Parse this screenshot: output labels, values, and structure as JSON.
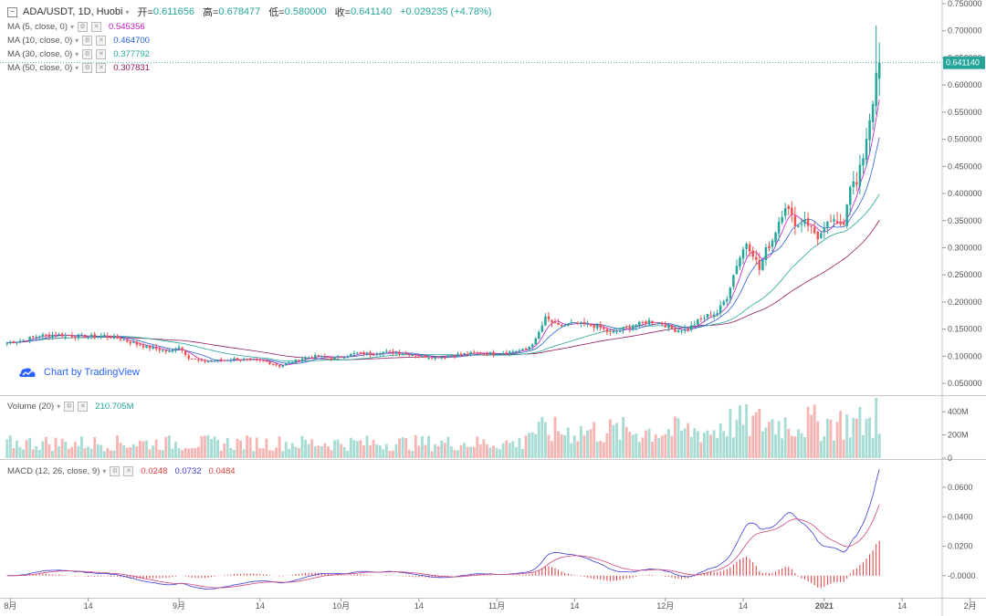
{
  "header": {
    "symbol": "ADA/USDT, 1D, Huobi",
    "open_label": "开=",
    "open": "0.611656",
    "high_label": "高=",
    "high": "0.678477",
    "low_label": "低=",
    "low": "0.580000",
    "close_label": "收=",
    "close": "0.641140",
    "change": "+0.029235 (+4.78%)"
  },
  "indicators": {
    "ma5": {
      "label": "MA (5, close, 0)",
      "value": "0.545356",
      "color": "#c218c2"
    },
    "ma10": {
      "label": "MA (10, close, 0)",
      "value": "0.464700",
      "color": "#2a5fd0"
    },
    "ma30": {
      "label": "MA (30, close, 0)",
      "value": "0.377792",
      "color": "#26a69a"
    },
    "ma50": {
      "label": "MA (50, close, 0)",
      "value": "0.307831",
      "color": "#8e1a5c"
    },
    "volume": {
      "label": "Volume (20)",
      "value": "210.705M"
    },
    "macd": {
      "label": "MACD (12, 26, close, 9)",
      "hist": "0.0248",
      "macd": "0.0732",
      "signal": "0.0484"
    }
  },
  "branding": "Chart by TradingView",
  "price_badge": "0.641140",
  "colors": {
    "up": "#26a69a",
    "down": "#ef5350",
    "up_vol": "#a6dcd3",
    "down_vol": "#f5b5b3",
    "macd_line": "#3b3bd6",
    "signal_line": "#d0467e",
    "hist": "#e03b3b"
  },
  "chart_data": {
    "type": "candlestick",
    "symbol": "ADA/USDT",
    "interval": "1D",
    "price_axis": {
      "ticks": [
        "0.750000",
        "0.700000",
        "0.650000",
        "0.600000",
        "0.550000",
        "0.500000",
        "0.450000",
        "0.400000",
        "0.350000",
        "0.300000",
        "0.250000",
        "0.200000",
        "0.150000",
        "0.100000",
        "0.050000"
      ],
      "range": [
        0.03,
        0.75
      ]
    },
    "volume_axis": {
      "ticks": [
        "400M",
        "200M",
        "0"
      ],
      "range": [
        0,
        520
      ]
    },
    "macd_axis": {
      "ticks": [
        "0.0600",
        "0.0400",
        "0.0200",
        "-0.0000"
      ],
      "range": [
        -0.015,
        0.078
      ]
    },
    "x_labels": [
      "8月",
      "14",
      "9月",
      "14",
      "10月",
      "14",
      "11月",
      "14",
      "12月",
      "14",
      "2021",
      "14",
      "2月",
      "14"
    ],
    "waypoints": [
      [
        0,
        0.125
      ],
      [
        5,
        0.13
      ],
      [
        10,
        0.138
      ],
      [
        15,
        0.14
      ],
      [
        20,
        0.138
      ],
      [
        25,
        0.136
      ],
      [
        30,
        0.138
      ],
      [
        35,
        0.132
      ],
      [
        40,
        0.122
      ],
      [
        45,
        0.115
      ],
      [
        50,
        0.108
      ],
      [
        53,
        0.118
      ],
      [
        56,
        0.098
      ],
      [
        60,
        0.09
      ],
      [
        65,
        0.092
      ],
      [
        70,
        0.095
      ],
      [
        75,
        0.093
      ],
      [
        80,
        0.09
      ],
      [
        84,
        0.082
      ],
      [
        88,
        0.09
      ],
      [
        92,
        0.098
      ],
      [
        96,
        0.1
      ],
      [
        100,
        0.097
      ],
      [
        104,
        0.1
      ],
      [
        108,
        0.106
      ],
      [
        112,
        0.104
      ],
      [
        116,
        0.108
      ],
      [
        120,
        0.107
      ],
      [
        124,
        0.104
      ],
      [
        128,
        0.1
      ],
      [
        132,
        0.098
      ],
      [
        136,
        0.1
      ],
      [
        140,
        0.104
      ],
      [
        145,
        0.106
      ],
      [
        150,
        0.105
      ],
      [
        155,
        0.108
      ],
      [
        160,
        0.112
      ],
      [
        163,
        0.13
      ],
      [
        166,
        0.17
      ],
      [
        170,
        0.155
      ],
      [
        174,
        0.16
      ],
      [
        178,
        0.158
      ],
      [
        182,
        0.155
      ],
      [
        186,
        0.143
      ],
      [
        190,
        0.15
      ],
      [
        194,
        0.158
      ],
      [
        198,
        0.165
      ],
      [
        202,
        0.16
      ],
      [
        206,
        0.148
      ],
      [
        210,
        0.15
      ],
      [
        213,
        0.165
      ],
      [
        216,
        0.175
      ],
      [
        219,
        0.18
      ],
      [
        222,
        0.21
      ],
      [
        225,
        0.27
      ],
      [
        228,
        0.31
      ],
      [
        230,
        0.29
      ],
      [
        232,
        0.26
      ],
      [
        234,
        0.295
      ],
      [
        236,
        0.315
      ],
      [
        238,
        0.35
      ],
      [
        240,
        0.38
      ],
      [
        242,
        0.355
      ],
      [
        244,
        0.34
      ],
      [
        246,
        0.355
      ],
      [
        248,
        0.335
      ],
      [
        250,
        0.32
      ],
      [
        252,
        0.33
      ],
      [
        254,
        0.35
      ],
      [
        256,
        0.34
      ],
      [
        258,
        0.35
      ],
      [
        260,
        0.42
      ],
      [
        262,
        0.415
      ],
      [
        264,
        0.47
      ],
      [
        266,
        0.54
      ],
      [
        268,
        0.61
      ],
      [
        269,
        0.641
      ]
    ],
    "notes": "Daily candles with MA5/MA10/MA30/MA50 overlays, volume histogram and MACD(12,26,9) panel; last close 0.641140."
  }
}
